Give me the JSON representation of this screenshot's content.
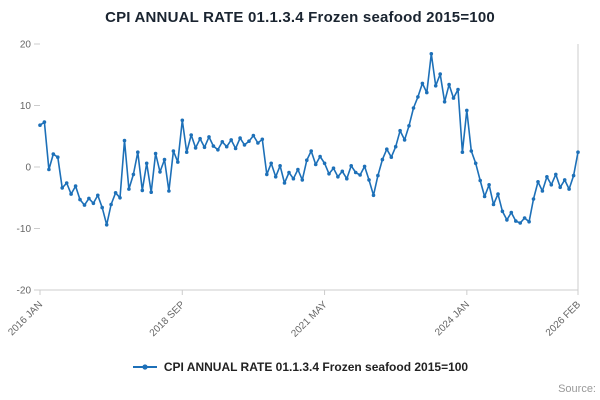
{
  "title": "CPI ANNUAL RATE 01.1.3.4 Frozen seafood 2015=100",
  "legend": {
    "label": "CPI ANNUAL RATE 01.1.3.4 Frozen seafood 2015=100"
  },
  "source_label": "Source:",
  "colors": {
    "series": "#1d70b8",
    "axis": "#cccccc",
    "tick_text": "#666666",
    "title_text": "#1a2430"
  },
  "chart_data": {
    "type": "line",
    "title": "CPI ANNUAL RATE 01.1.3.4 Frozen seafood 2015=100",
    "series_name": "CPI ANNUAL RATE 01.1.3.4 Frozen seafood 2015=100",
    "x_unit": "month",
    "start": "2016 JAN",
    "end": "2026 FEB",
    "x_tick_labels": [
      "2016 JAN",
      "2018 SEP",
      "2021 MAY",
      "2024 JAN",
      "2026 FEB"
    ],
    "x_tick_positions": [
      0,
      32,
      64,
      96,
      121
    ],
    "y_ticks": [
      -20,
      -10,
      0,
      10,
      20
    ],
    "ylim": [
      -20,
      20
    ],
    "grid": false,
    "legend_position": "bottom",
    "marker": "circle",
    "values": [
      6.8,
      7.3,
      -0.4,
      2.1,
      1.6,
      -3.4,
      -2.6,
      -4.4,
      -3.1,
      -5.3,
      -6.2,
      -5.1,
      -5.9,
      -4.6,
      -6.6,
      -9.4,
      -6.1,
      -4.2,
      -5.0,
      4.3,
      -3.6,
      -1.2,
      2.4,
      -3.8,
      0.6,
      -4.1,
      2.2,
      -0.8,
      1.2,
      -3.9,
      2.6,
      0.8,
      7.6,
      2.4,
      5.2,
      3.1,
      4.6,
      3.2,
      4.9,
      3.4,
      2.8,
      4.1,
      3.3,
      4.4,
      3.0,
      4.7,
      3.6,
      4.2,
      5.1,
      3.9,
      4.5,
      -1.2,
      0.6,
      -1.6,
      0.2,
      -2.6,
      -0.9,
      -1.9,
      -0.4,
      -2.1,
      1.1,
      2.6,
      0.4,
      1.7,
      0.6,
      -1.1,
      -0.2,
      -1.6,
      -0.7,
      -1.9,
      0.2,
      -0.9,
      -1.3,
      0.1,
      -2.1,
      -4.6,
      -1.4,
      1.2,
      2.9,
      1.6,
      3.3,
      5.9,
      4.4,
      6.7,
      9.6,
      11.4,
      13.6,
      12.1,
      18.4,
      13.2,
      15.1,
      10.6,
      13.4,
      11.2,
      12.6,
      2.4,
      9.2,
      2.6,
      0.6,
      -2.2,
      -4.8,
      -2.9,
      -6.1,
      -4.4,
      -7.2,
      -8.6,
      -7.4,
      -8.8,
      -9.1,
      -8.3,
      -8.9,
      -5.2,
      -2.4,
      -3.9,
      -1.6,
      -2.9,
      -1.2,
      -3.3,
      -2.1,
      -3.6,
      -1.4,
      2.4
    ]
  }
}
